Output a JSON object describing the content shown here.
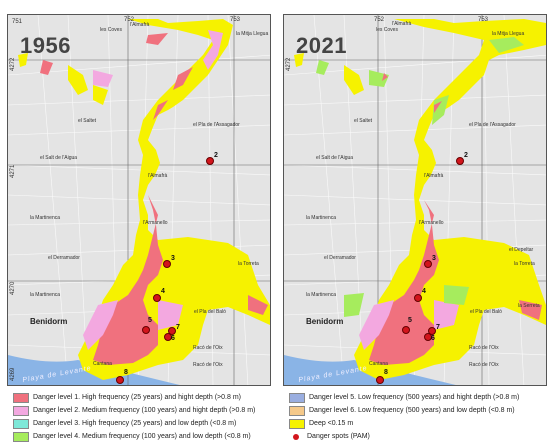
{
  "panels": {
    "left": {
      "year": "1956"
    },
    "right": {
      "year": "2021"
    }
  },
  "coords": {
    "x1": "751",
    "x2": "752",
    "x3": "753",
    "y1": "4272",
    "y2": "4271",
    "y3": "4270",
    "y4": "4269"
  },
  "places": {
    "coves": "les Coves",
    "almafra": "l'Almafrà",
    "mitja_llegua": "la Mitja Llegua",
    "saltet": "el Saltet",
    "pla_assagador": "el Pla de l'Assagador",
    "salt_aigua": "el Salt de l'Aigua",
    "martinenca": "la Martinenca",
    "armanello": "l'Armanello",
    "derramador": "el Derramador",
    "depeltar": "el Depeltar",
    "torreta": "la Torreta",
    "pla_bal": "el Pla del Baló",
    "benidorm": "Benidorm",
    "racons_oix": "Racó de l'Oix",
    "racons_oix2": "Racó de l'Oix",
    "playa": "Playa de Levante",
    "cantana": "Cantana",
    "serreta": "la Serreta"
  },
  "spots": [
    "2",
    "3",
    "4",
    "5",
    "6",
    "7",
    "8"
  ],
  "legend": [
    {
      "label": "Danger level 1. High frequency (25  years) and  hight depth (>0.8 m)",
      "color": "#f0717e"
    },
    {
      "label": "Danger level 2. Medium frequency (100  years) and  hight depth (>0.8 m)",
      "color": "#f3a8e0"
    },
    {
      "label": "Danger level 3. High frequency (25  years) and  low depth (<0.8 m)",
      "color": "#7ee8d8"
    },
    {
      "label": "Danger level 4. Medium frequency (100 years) and  low depth (<0.8 m)",
      "color": "#a6ec5d"
    },
    {
      "label": "Danger level 5. Low frequency (500  years) and  hight depth (>0.8 m)",
      "color": "#9aaee0"
    },
    {
      "label": "Danger level 6. Low frequency (500  years) and  low depth (<0.8 m)",
      "color": "#f5c98a"
    },
    {
      "label": "Deep <0.15 m",
      "color": "#f6f200"
    },
    {
      "label": "Danger spots (PAM)",
      "color": "#d2151c"
    }
  ]
}
